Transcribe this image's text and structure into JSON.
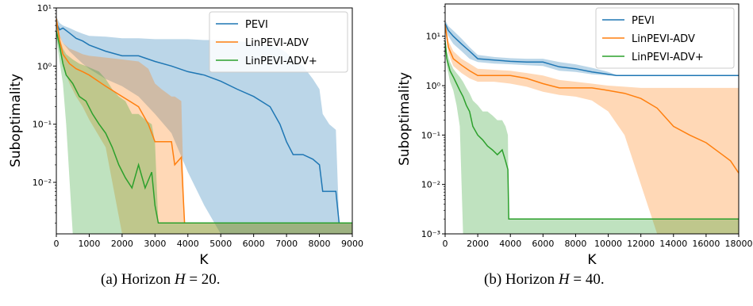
{
  "captions": [
    {
      "prefix": "(a) Horizon ",
      "var": "H",
      "suffix": " = 20."
    },
    {
      "prefix": "(b) Horizon ",
      "var": "H",
      "suffix": " = 40."
    }
  ],
  "colors": {
    "PEVI": "#1f77b4",
    "LinPEVI-ADV": "#ff7f0e",
    "LinPEVI-ADV+": "#2ca02c"
  },
  "chart_data": [
    {
      "type": "line",
      "xlabel": "K",
      "ylabel": "Suboptimality",
      "yscale": "log",
      "xlim": [
        0,
        9000
      ],
      "ylim": [
        0.0013,
        10
      ],
      "xticks": [
        0,
        1000,
        2000,
        3000,
        4000,
        5000,
        6000,
        7000,
        8000,
        9000
      ],
      "xtick_labels": [
        "0",
        "1000",
        "2000",
        "3000",
        "4000",
        "5000",
        "6000",
        "7000",
        "8000",
        "9000"
      ],
      "yticks": [
        0.01,
        0.1,
        1,
        10
      ],
      "ytick_labels": [
        "10⁻²",
        "10⁻¹",
        "10⁰",
        "10¹"
      ],
      "legend": "top-right",
      "series": [
        {
          "name": "PEVI",
          "x": [
            0,
            100,
            200,
            400,
            600,
            800,
            1000,
            1500,
            2000,
            2500,
            3000,
            3500,
            4000,
            4500,
            5000,
            5500,
            6000,
            6500,
            6800,
            7000,
            7200,
            7500,
            7800,
            8000,
            8100,
            8300,
            8500,
            8600,
            9000
          ],
          "y": [
            5.5,
            4.2,
            4.5,
            3.7,
            3.0,
            2.7,
            2.3,
            1.8,
            1.5,
            1.5,
            1.2,
            1.0,
            0.8,
            0.7,
            0.55,
            0.4,
            0.3,
            0.2,
            0.1,
            0.05,
            0.03,
            0.03,
            0.025,
            0.02,
            0.007,
            0.007,
            0.007,
            0.002,
            0.002
          ],
          "lower": [
            4.5,
            3.3,
            2.5,
            1.8,
            1.4,
            1.1,
            0.9,
            0.6,
            0.45,
            0.3,
            0.15,
            0.07,
            0.015,
            0.004,
            0.0013,
            0.0013,
            0.0013,
            0.0013,
            0.0013,
            0.0013,
            0.0013,
            0.0013,
            0.0013,
            0.0013,
            0.0013,
            0.0013,
            0.0013,
            0.0013,
            0.0013
          ],
          "upper": [
            7.0,
            5.5,
            5.0,
            4.5,
            4.0,
            3.6,
            3.3,
            3.2,
            3.0,
            3.0,
            2.9,
            2.9,
            2.9,
            2.8,
            2.8,
            2.7,
            2.5,
            2.3,
            2.0,
            1.7,
            1.3,
            1.0,
            0.6,
            0.4,
            0.15,
            0.1,
            0.08,
            0.002,
            0.002
          ]
        },
        {
          "name": "LinPEVI-ADV",
          "x": [
            0,
            100,
            200,
            400,
            600,
            800,
            1000,
            1500,
            2000,
            2500,
            2800,
            3000,
            3200,
            3500,
            3600,
            3800,
            3900,
            4000,
            9000
          ],
          "y": [
            6.5,
            2.8,
            1.6,
            1.1,
            0.9,
            0.8,
            0.7,
            0.45,
            0.3,
            0.2,
            0.1,
            0.05,
            0.05,
            0.05,
            0.02,
            0.027,
            0.002,
            0.002,
            0.002
          ],
          "lower": [
            5.0,
            2.0,
            1.0,
            0.5,
            0.3,
            0.2,
            0.12,
            0.04,
            0.0013,
            0.0013,
            0.0013,
            0.0013,
            0.0013,
            0.0013,
            0.0013,
            0.0013,
            0.0013,
            0.0013,
            0.0013
          ],
          "upper": [
            8.0,
            3.5,
            2.5,
            2.0,
            1.8,
            1.6,
            1.5,
            1.4,
            1.3,
            1.2,
            0.9,
            0.5,
            0.4,
            0.3,
            0.3,
            0.25,
            0.002,
            0.002,
            0.002
          ]
        },
        {
          "name": "LinPEVI-ADV+",
          "x": [
            0,
            100,
            200,
            300,
            500,
            700,
            900,
            1100,
            1300,
            1500,
            1700,
            1900,
            2100,
            2300,
            2500,
            2700,
            2900,
            3000,
            3100,
            9000
          ],
          "y": [
            4.0,
            2.2,
            1.1,
            0.7,
            0.5,
            0.3,
            0.25,
            0.15,
            0.1,
            0.07,
            0.04,
            0.02,
            0.012,
            0.008,
            0.02,
            0.008,
            0.015,
            0.004,
            0.002,
            0.002
          ],
          "lower": [
            3.0,
            1.2,
            0.5,
            0.1,
            0.0013,
            0.0013,
            0.0013,
            0.0013,
            0.0013,
            0.0013,
            0.0013,
            0.0013,
            0.0013,
            0.0013,
            0.0013,
            0.0013,
            0.0013,
            0.0013,
            0.0013,
            0.0013
          ],
          "upper": [
            5.5,
            3.0,
            2.0,
            1.6,
            1.3,
            1.1,
            1.0,
            0.9,
            0.8,
            0.6,
            0.4,
            0.3,
            0.25,
            0.15,
            0.15,
            0.12,
            0.1,
            0.05,
            0.002,
            0.002
          ]
        }
      ]
    },
    {
      "type": "line",
      "xlabel": "K",
      "ylabel": "Suboptimality",
      "yscale": "log",
      "xlim": [
        0,
        18000
      ],
      "ylim": [
        0.001,
        45
      ],
      "xticks": [
        0,
        2000,
        4000,
        6000,
        8000,
        10000,
        12000,
        14000,
        16000,
        18000
      ],
      "xtick_labels": [
        "0",
        "2000",
        "4000",
        "6000",
        "8000",
        "10000",
        "12000",
        "14000",
        "16000",
        "18000"
      ],
      "yticks": [
        0.001,
        0.01,
        0.1,
        1,
        10
      ],
      "ytick_labels": [
        "10⁻³",
        "10⁻²",
        "10⁻¹",
        "10⁰",
        "10¹"
      ],
      "legend": "top-right",
      "series": [
        {
          "name": "PEVI",
          "x": [
            0,
            200,
            500,
            1000,
            1500,
            2000,
            3000,
            4000,
            5000,
            6000,
            7000,
            8000,
            9000,
            10000,
            10500,
            12000,
            15000,
            18000
          ],
          "y": [
            18,
            13,
            10,
            7,
            5,
            3.5,
            3.3,
            3.1,
            3.0,
            3.0,
            2.4,
            2.2,
            1.9,
            1.7,
            1.6,
            1.6,
            1.6,
            1.6
          ],
          "lower": [
            15,
            10,
            7,
            5,
            3.5,
            3.0,
            2.8,
            2.7,
            2.6,
            2.5,
            2.0,
            1.9,
            1.7,
            1.6,
            1.6,
            1.6,
            1.6,
            1.6
          ],
          "upper": [
            21,
            16,
            13,
            9,
            6,
            4.2,
            3.8,
            3.6,
            3.5,
            3.5,
            3.0,
            2.7,
            2.3,
            1.9,
            1.65,
            1.6,
            1.6,
            1.6
          ]
        },
        {
          "name": "LinPEVI-ADV",
          "x": [
            0,
            200,
            500,
            1000,
            1500,
            2000,
            3000,
            4000,
            5000,
            6000,
            7000,
            8000,
            9000,
            10000,
            11000,
            12000,
            13000,
            14000,
            15000,
            16000,
            17000,
            17500,
            18000
          ],
          "y": [
            17,
            6,
            3.5,
            2.6,
            2.0,
            1.6,
            1.6,
            1.6,
            1.4,
            1.1,
            0.9,
            0.9,
            0.9,
            0.8,
            0.7,
            0.55,
            0.35,
            0.15,
            0.1,
            0.07,
            0.04,
            0.03,
            0.017
          ],
          "lower": [
            14,
            4.5,
            2.5,
            1.8,
            1.4,
            1.2,
            1.2,
            1.1,
            0.95,
            0.75,
            0.65,
            0.6,
            0.5,
            0.3,
            0.1,
            0.01,
            0.001,
            0.001,
            0.001,
            0.001,
            0.001,
            0.001,
            0.001
          ],
          "upper": [
            20,
            8,
            5,
            3.5,
            2.8,
            2.2,
            2.1,
            2.0,
            1.8,
            1.6,
            1.3,
            1.2,
            1.1,
            1.0,
            0.95,
            0.9,
            0.9,
            0.9,
            0.9,
            0.9,
            0.9,
            0.9,
            0.9
          ]
        },
        {
          "name": "LinPEVI-ADV+",
          "x": [
            0,
            100,
            300,
            500,
            700,
            900,
            1100,
            1300,
            1500,
            1700,
            2000,
            2300,
            2600,
            2900,
            3200,
            3500,
            3700,
            3850,
            3900,
            18000
          ],
          "y": [
            8,
            3.5,
            2.0,
            1.5,
            1.1,
            0.8,
            0.6,
            0.4,
            0.3,
            0.15,
            0.1,
            0.08,
            0.06,
            0.05,
            0.04,
            0.05,
            0.03,
            0.02,
            0.002,
            0.002
          ],
          "lower": [
            6,
            2.5,
            1.2,
            0.8,
            0.4,
            0.15,
            0.001,
            0.001,
            0.001,
            0.001,
            0.001,
            0.001,
            0.001,
            0.001,
            0.001,
            0.001,
            0.001,
            0.001,
            0.001,
            0.001
          ],
          "upper": [
            10,
            5,
            3.0,
            2.2,
            1.8,
            1.5,
            1.2,
            0.9,
            0.7,
            0.5,
            0.4,
            0.3,
            0.3,
            0.25,
            0.2,
            0.2,
            0.15,
            0.1,
            0.002,
            0.002
          ]
        }
      ]
    }
  ]
}
